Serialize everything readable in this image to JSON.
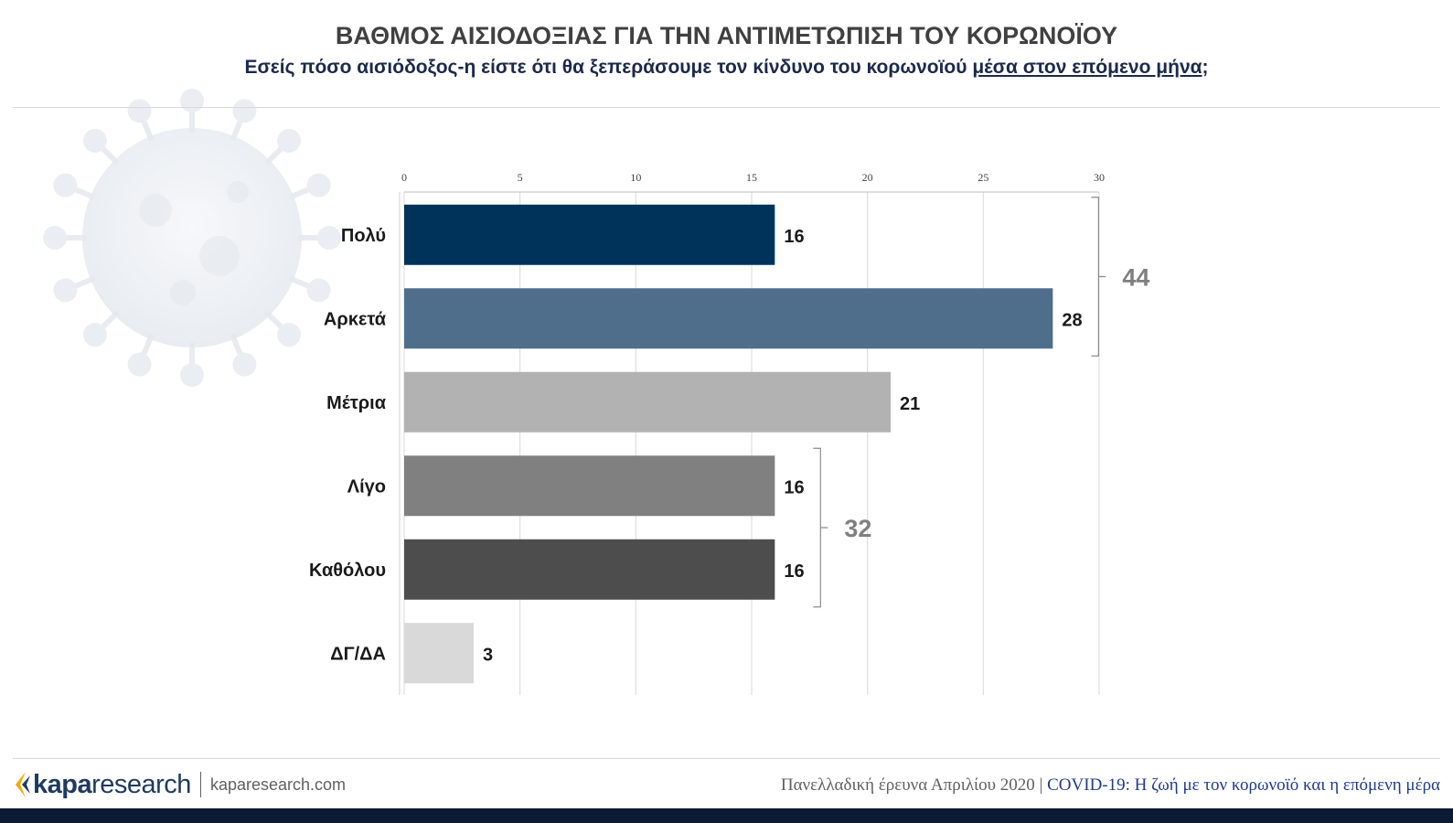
{
  "header": {
    "title": "ΒΑΘΜΟΣ ΑΙΣΙΟΔΟΞΙΑΣ ΓΙΑ ΤΗΝ ΑΝΤΙΜΕΤΩΠΙΣΗ ΤΟΥ ΚΟΡΩΝΟΪΟΥ",
    "subtitle_prefix": "Εσείς πόσο αισιόδοξος-η είστε ότι θα ξεπεράσουμε τον κίνδυνο του κορωνοϊού ",
    "subtitle_underlined": "μέσα στον επόμενο μήνα",
    "subtitle_suffix": ";"
  },
  "chart_data": {
    "type": "bar",
    "orientation": "horizontal",
    "categories": [
      "Πολύ",
      "Αρκετά",
      "Μέτρια",
      "Λίγο",
      "Καθόλου",
      "ΔΓ/ΔΑ"
    ],
    "values": [
      16,
      28,
      21,
      16,
      16,
      3
    ],
    "colors": [
      "#00335a",
      "#4f6e8c",
      "#b2b2b2",
      "#808080",
      "#4d4d4d",
      "#d9d9d9"
    ],
    "xlim": [
      0,
      30
    ],
    "xticks": [
      "0",
      "5",
      "10",
      "15",
      "20",
      "25",
      "30"
    ],
    "axis_position": "top",
    "grid": true,
    "brackets": [
      {
        "from": 0,
        "to": 1,
        "label": "44"
      },
      {
        "from": 3,
        "to": 4,
        "label": "32"
      }
    ]
  },
  "footer": {
    "logo_kapa": "kapa",
    "logo_research": "research",
    "site": "kaparesearch.com",
    "survey": "Πανελλαδική έρευνα Απριλίου 2020",
    "separator": " | ",
    "report": "COVID-19: Η ζωή με τον κορωνοϊό και η επόμενη μέρα"
  },
  "colors": {
    "title": "#404040",
    "subtitle": "#1c2a4a",
    "brand": "#1f3a5f",
    "logo_accent": "#f2a900",
    "bottom_bar": "#0d1a33"
  }
}
